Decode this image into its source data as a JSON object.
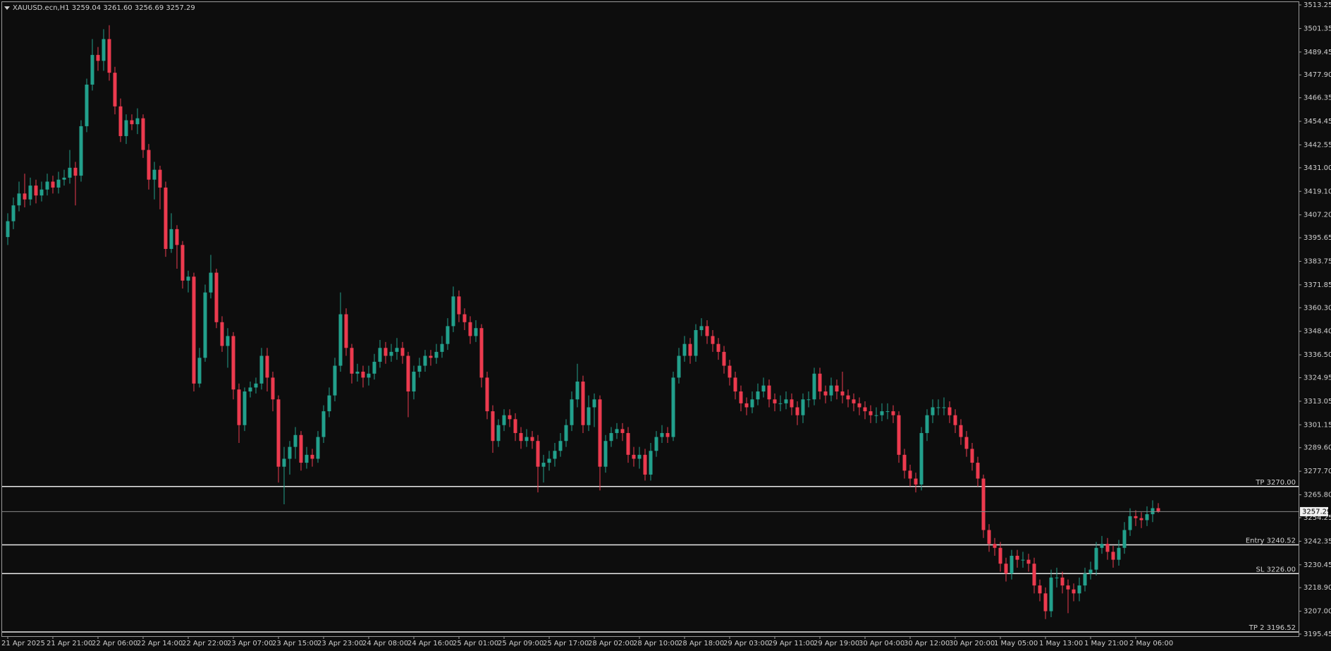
{
  "chart_data": {
    "type": "candlestick",
    "title": "XAUUSD.ecn,H1  3259.04 3261.60 3256.69 3257.29",
    "up_color": "#22a08c",
    "down_color": "#ec3a4e",
    "level_color": "#e8e8e8",
    "grid": false,
    "ylim": [
      3195.45,
      3513.25
    ],
    "yticks": [
      3513.25,
      3501.35,
      3489.45,
      {
        "value": 3477.9,
        "label": "3477.90"
      },
      3466.35,
      3454.45,
      3442.55,
      {
        "value": 3431,
        "label": "3431.00"
      },
      {
        "value": 3419.1,
        "label": "3419.10"
      },
      {
        "value": 3407.2,
        "label": "3407.20"
      },
      3395.65,
      3383.75,
      3371.85,
      {
        "value": 3360.3,
        "label": "3360.30"
      },
      {
        "value": 3348.4,
        "label": "3348.40"
      },
      {
        "value": 3336.5,
        "label": "3336.50"
      },
      3324.95,
      3313.05,
      3301.15,
      {
        "value": 3289.6,
        "label": "3289.60"
      },
      {
        "value": 3277.7,
        "label": "3277.70"
      },
      {
        "value": 3265.8,
        "label": "3265.80"
      },
      3254.25,
      3242.35,
      3230.45,
      {
        "value": 3218.9,
        "label": "3218.90"
      },
      {
        "value": 3207,
        "label": "3207.00"
      },
      3195.45
    ],
    "categories": [
      "21 Apr 2025",
      null,
      null,
      null,
      null,
      null,
      null,
      null,
      "21 Apr 21:00",
      null,
      null,
      null,
      null,
      null,
      null,
      null,
      "22 Apr 06:00",
      null,
      null,
      null,
      null,
      null,
      null,
      null,
      "22 Apr 14:00",
      null,
      null,
      null,
      null,
      null,
      null,
      null,
      "22 Apr 22:00",
      null,
      null,
      null,
      null,
      null,
      null,
      null,
      "23 Apr 07:00",
      null,
      null,
      null,
      null,
      null,
      null,
      null,
      "23 Apr 15:00",
      null,
      null,
      null,
      null,
      null,
      null,
      null,
      "23 Apr 23:00",
      null,
      null,
      null,
      null,
      null,
      null,
      null,
      "24 Apr 08:00",
      null,
      null,
      null,
      null,
      null,
      null,
      null,
      "24 Apr 16:00",
      null,
      null,
      null,
      null,
      null,
      null,
      null,
      "25 Apr 01:00",
      null,
      null,
      null,
      null,
      null,
      null,
      null,
      "25 Apr 09:00",
      null,
      null,
      null,
      null,
      null,
      null,
      null,
      "25 Apr 17:00",
      null,
      null,
      null,
      null,
      null,
      null,
      null,
      "28 Apr 02:00",
      null,
      null,
      null,
      null,
      null,
      null,
      null,
      "28 Apr 10:00",
      null,
      null,
      null,
      null,
      null,
      null,
      null,
      "28 Apr 18:00",
      null,
      null,
      null,
      null,
      null,
      null,
      null,
      "29 Apr 03:00",
      null,
      null,
      null,
      null,
      null,
      null,
      null,
      "29 Apr 11:00",
      null,
      null,
      null,
      null,
      null,
      null,
      null,
      "29 Apr 19:00",
      null,
      null,
      null,
      null,
      null,
      null,
      null,
      "30 Apr 04:00",
      null,
      null,
      null,
      null,
      null,
      null,
      null,
      "30 Apr 12:00",
      null,
      null,
      null,
      null,
      null,
      null,
      null,
      "30 Apr 20:00",
      null,
      null,
      null,
      null,
      null,
      null,
      null,
      "1 May 05:00",
      null,
      null,
      null,
      null,
      null,
      null,
      null,
      "1 May 13:00",
      null,
      null,
      null,
      null,
      null,
      null,
      null,
      "1 May 21:00",
      null,
      null,
      null,
      null,
      null,
      null,
      null,
      "2 May 06:00",
      null,
      null,
      null,
      null
    ],
    "open": [
      3396,
      3404,
      3412,
      3418,
      3415,
      3422,
      3417,
      3420,
      3424,
      3421,
      3425,
      3426,
      3431,
      3427,
      3452,
      3473,
      3488,
      3485,
      3496,
      3479,
      3462,
      3447,
      3455,
      3453,
      3456,
      3440,
      3425,
      3430,
      3421,
      3390,
      3400,
      3392,
      3374,
      3376,
      3322,
      3335,
      3368,
      3378,
      3353,
      3341,
      3346,
      3319,
      3301,
      3318,
      3320,
      3322,
      3336,
      3325,
      3314,
      3280,
      3284,
      3290,
      3296,
      3282,
      3286,
      3284,
      3295,
      3308,
      3316,
      3331,
      3357,
      3340,
      3327,
      3328,
      3325,
      3327,
      3333,
      3340,
      3336,
      3338,
      3340,
      3336,
      3318,
      3328,
      3331,
      3336,
      3335,
      3338,
      3342,
      3351,
      3366,
      3357,
      3353,
      3346,
      3350,
      3325,
      3308,
      3293,
      3301,
      3306,
      3304,
      3297,
      3293,
      3295,
      3293,
      3280,
      3282,
      3284,
      3288,
      3293,
      3301,
      3314,
      3323,
      3301,
      3310,
      3314,
      3280,
      3293,
      3297,
      3299,
      3297,
      3286,
      3284,
      3286,
      3276,
      3288,
      3295,
      3297,
      3295,
      3325,
      3336,
      3342,
      3336,
      3349,
      3351,
      3346,
      3342,
      3338,
      3331,
      3325,
      3318,
      3312,
      3310,
      3314,
      3318,
      3321,
      3314,
      3312,
      3312,
      3314,
      3310,
      3306,
      3314,
      3314,
      3327,
      3318,
      3316,
      3321,
      3318,
      3316,
      3314,
      3312,
      3310,
      3308,
      3306,
      3306,
      3308,
      3308,
      3306,
      3286,
      3278,
      3274,
      3271,
      3297,
      3306,
      3310,
      3310,
      3310,
      3306,
      3301,
      3295,
      3289,
      3282,
      3274,
      3248,
      3241,
      3239,
      3231,
      3226,
      3235,
      3233,
      3233,
      3231,
      3220,
      3216,
      3207,
      3224,
      3224,
      3220,
      3218,
      3216,
      3220,
      3226,
      3228,
      3239,
      3241,
      3237,
      3233,
      3239,
      3248,
      3255,
      3254,
      3253,
      3256,
      3259.04
    ],
    "high": [
      3408,
      3416,
      3424,
      3428,
      3426,
      3425,
      3424,
      3428,
      3427,
      3429,
      3430,
      3440,
      3434,
      3455,
      3476,
      3496,
      3492,
      3501,
      3503,
      3482,
      3466,
      3458,
      3458,
      3461,
      3458,
      3443,
      3434,
      3432,
      3424,
      3408,
      3402,
      3394,
      3379,
      3378,
      3340,
      3372,
      3387,
      3380,
      3356,
      3350,
      3348,
      3322,
      3320,
      3323,
      3325,
      3340,
      3340,
      3328,
      3316,
      3290,
      3293,
      3300,
      3298,
      3290,
      3289,
      3298,
      3311,
      3320,
      3335,
      3368,
      3360,
      3342,
      3332,
      3331,
      3331,
      3337,
      3344,
      3343,
      3342,
      3345,
      3343,
      3338,
      3331,
      3335,
      3339,
      3339,
      3342,
      3346,
      3355,
      3371,
      3369,
      3360,
      3356,
      3354,
      3352,
      3328,
      3311,
      3304,
      3309,
      3309,
      3307,
      3300,
      3299,
      3298,
      3296,
      3286,
      3288,
      3292,
      3297,
      3304,
      3318,
      3332,
      3326,
      3316,
      3317,
      3316,
      3296,
      3300,
      3302,
      3302,
      3300,
      3290,
      3290,
      3289,
      3292,
      3298,
      3301,
      3300,
      3328,
      3340,
      3346,
      3345,
      3352,
      3355,
      3354,
      3349,
      3345,
      3341,
      3334,
      3328,
      3321,
      3315,
      3318,
      3322,
      3325,
      3324,
      3317,
      3316,
      3318,
      3317,
      3313,
      3317,
      3318,
      3330,
      3330,
      3321,
      3325,
      3324,
      3328,
      3319,
      3317,
      3315,
      3313,
      3311,
      3310,
      3312,
      3312,
      3311,
      3308,
      3289,
      3281,
      3277,
      3300,
      3309,
      3314,
      3314,
      3315,
      3313,
      3309,
      3304,
      3298,
      3292,
      3285,
      3276,
      3251,
      3244,
      3242,
      3234,
      3238,
      3238,
      3237,
      3236,
      3234,
      3223,
      3219,
      3228,
      3229,
      3227,
      3223,
      3221,
      3224,
      3229,
      3232,
      3242,
      3245,
      3244,
      3240,
      3243,
      3252,
      3259,
      3258,
      3257,
      3260,
      3263,
      3261.6
    ],
    "low": [
      3392,
      3400,
      3409,
      3411,
      3412,
      3413,
      3414,
      3417,
      3418,
      3418,
      3422,
      3423,
      3412,
      3424,
      3449,
      3470,
      3480,
      3480,
      3475,
      3458,
      3444,
      3443,
      3450,
      3448,
      3436,
      3420,
      3415,
      3410,
      3386,
      3388,
      3380,
      3370,
      3368,
      3318,
      3320,
      3333,
      3365,
      3350,
      3338,
      3330,
      3314,
      3292,
      3298,
      3315,
      3317,
      3319,
      3318,
      3308,
      3272,
      3261,
      3276,
      3284,
      3278,
      3279,
      3280,
      3282,
      3292,
      3305,
      3313,
      3328,
      3336,
      3322,
      3323,
      3320,
      3321,
      3324,
      3330,
      3332,
      3333,
      3334,
      3332,
      3305,
      3314,
      3325,
      3328,
      3331,
      3332,
      3335,
      3339,
      3348,
      3353,
      3349,
      3342,
      3343,
      3320,
      3304,
      3287,
      3290,
      3298,
      3300,
      3293,
      3289,
      3290,
      3289,
      3267,
      3272,
      3278,
      3280,
      3285,
      3290,
      3298,
      3310,
      3297,
      3298,
      3300,
      3268,
      3277,
      3290,
      3294,
      3293,
      3282,
      3280,
      3279,
      3273,
      3273,
      3285,
      3292,
      3292,
      3293,
      3322,
      3333,
      3332,
      3333,
      3346,
      3342,
      3338,
      3334,
      3327,
      3321,
      3314,
      3308,
      3306,
      3307,
      3311,
      3315,
      3310,
      3308,
      3308,
      3309,
      3306,
      3301,
      3302,
      3310,
      3311,
      3314,
      3312,
      3313,
      3314,
      3312,
      3310,
      3308,
      3306,
      3304,
      3302,
      3302,
      3303,
      3304,
      3302,
      3282,
      3274,
      3270,
      3267,
      3268,
      3293,
      3302,
      3306,
      3306,
      3302,
      3297,
      3291,
      3285,
      3278,
      3270,
      3244,
      3237,
      3235,
      3227,
      3222,
      3223,
      3229,
      3229,
      3227,
      3216,
      3212,
      3203,
      3204,
      3219,
      3216,
      3206,
      3212,
      3212,
      3217,
      3223,
      3225,
      3236,
      3233,
      3229,
      3230,
      3236,
      3245,
      3250,
      3249,
      3250,
      3252,
      3256.69
    ],
    "close": [
      3404,
      3412,
      3418,
      3415,
      3422,
      3417,
      3420,
      3424,
      3421,
      3425,
      3426,
      3431,
      3427,
      3452,
      3473,
      3488,
      3485,
      3496,
      3479,
      3462,
      3447,
      3455,
      3453,
      3456,
      3440,
      3425,
      3430,
      3421,
      3390,
      3400,
      3392,
      3374,
      3376,
      3322,
      3335,
      3368,
      3378,
      3353,
      3341,
      3346,
      3319,
      3301,
      3318,
      3320,
      3322,
      3336,
      3325,
      3314,
      3280,
      3284,
      3290,
      3296,
      3282,
      3286,
      3284,
      3295,
      3308,
      3316,
      3331,
      3357,
      3340,
      3327,
      3328,
      3325,
      3327,
      3333,
      3340,
      3336,
      3338,
      3340,
      3336,
      3318,
      3328,
      3331,
      3336,
      3335,
      3338,
      3342,
      3351,
      3366,
      3357,
      3353,
      3346,
      3350,
      3325,
      3308,
      3293,
      3301,
      3306,
      3304,
      3297,
      3293,
      3295,
      3293,
      3280,
      3282,
      3284,
      3288,
      3293,
      3301,
      3314,
      3323,
      3301,
      3310,
      3314,
      3280,
      3293,
      3297,
      3299,
      3297,
      3286,
      3284,
      3286,
      3276,
      3288,
      3295,
      3297,
      3295,
      3325,
      3336,
      3342,
      3336,
      3349,
      3351,
      3346,
      3342,
      3338,
      3331,
      3325,
      3318,
      3312,
      3310,
      3314,
      3318,
      3321,
      3314,
      3312,
      3312,
      3314,
      3310,
      3306,
      3314,
      3314,
      3327,
      3318,
      3316,
      3321,
      3318,
      3316,
      3314,
      3312,
      3310,
      3308,
      3306,
      3306,
      3308,
      3308,
      3306,
      3286,
      3278,
      3274,
      3271,
      3297,
      3306,
      3310,
      3310,
      3310,
      3306,
      3301,
      3295,
      3289,
      3282,
      3274,
      3248,
      3241,
      3239,
      3231,
      3226,
      3235,
      3233,
      3233,
      3231,
      3220,
      3216,
      3207,
      3224,
      3224,
      3220,
      3218,
      3216,
      3220,
      3226,
      3228,
      3239,
      3241,
      3237,
      3233,
      3239,
      3248,
      3255,
      3254,
      3253,
      3256,
      3259.04,
      3257.29
    ],
    "levels": [
      {
        "label": "TP 3270.00",
        "value": 3270
      },
      {
        "label": "Entry 3240.52",
        "value": 3240.52
      },
      {
        "label": "SL 3226.00",
        "value": 3226
      },
      {
        "label": "TP 2 3196.52",
        "value": 3196.52
      }
    ]
  }
}
